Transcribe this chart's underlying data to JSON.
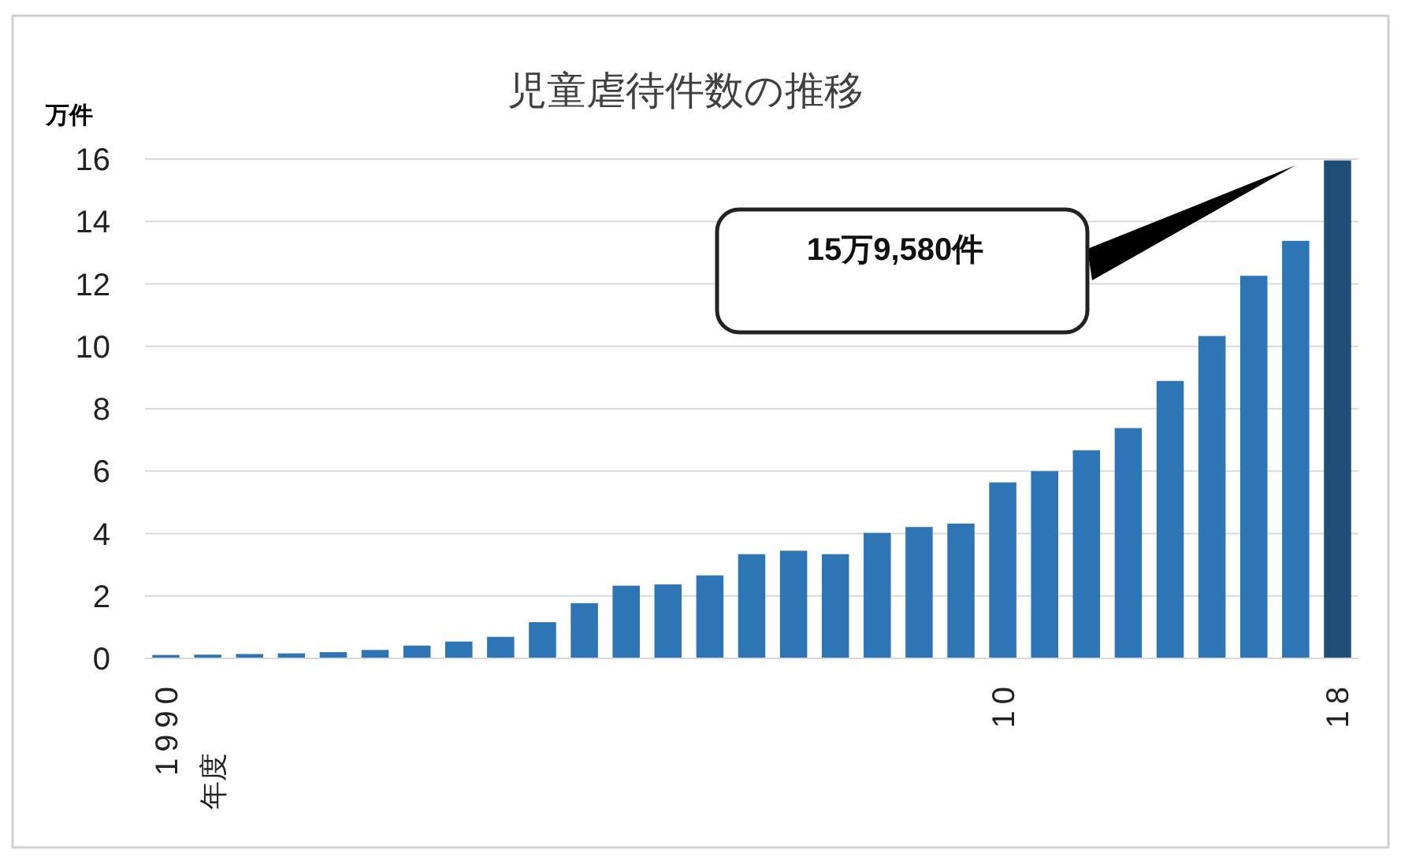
{
  "chart_data": {
    "type": "bar",
    "title": "児童虐待件数の推移",
    "ylabel": "万件",
    "categories": [
      "1990",
      null,
      null,
      null,
      null,
      null,
      null,
      null,
      null,
      null,
      null,
      null,
      null,
      null,
      null,
      null,
      null,
      null,
      null,
      null,
      "10",
      null,
      null,
      null,
      null,
      null,
      null,
      null,
      "18"
    ],
    "series": [
      {
        "colors": [
          "#2e75b6",
          "#2e75b6",
          "#2e75b6",
          "#2e75b6",
          "#2e75b6",
          "#2e75b6",
          "#2e75b6",
          "#2e75b6",
          "#2e75b6",
          "#2e75b6",
          "#2e75b6",
          "#2e75b6",
          "#2e75b6",
          "#2e75b6",
          "#2e75b6",
          "#2e75b6",
          "#2e75b6",
          "#2e75b6",
          "#2e75b6",
          "#2e75b6",
          "#2e75b6",
          "#2e75b6",
          "#2e75b6",
          "#2e75b6",
          "#2e75b6",
          "#2e75b6",
          "#2e75b6",
          "#2e75b6",
          "#1f4e79"
        ],
        "values": [
          0.11,
          0.12,
          0.14,
          0.16,
          0.2,
          0.27,
          0.41,
          0.54,
          0.69,
          1.16,
          1.77,
          2.33,
          2.37,
          2.66,
          3.34,
          3.45,
          3.34,
          4.02,
          4.21,
          4.32,
          5.64,
          6.0,
          6.67,
          7.38,
          8.89,
          10.33,
          12.26,
          13.38,
          15.958
        ]
      }
    ],
    "ylim": [
      0,
      16
    ],
    "yticks": [
      0,
      2,
      4,
      6,
      8,
      10,
      12,
      14,
      16
    ],
    "grid": "y",
    "annotations": [
      "15万9,580件",
      "年度"
    ]
  }
}
